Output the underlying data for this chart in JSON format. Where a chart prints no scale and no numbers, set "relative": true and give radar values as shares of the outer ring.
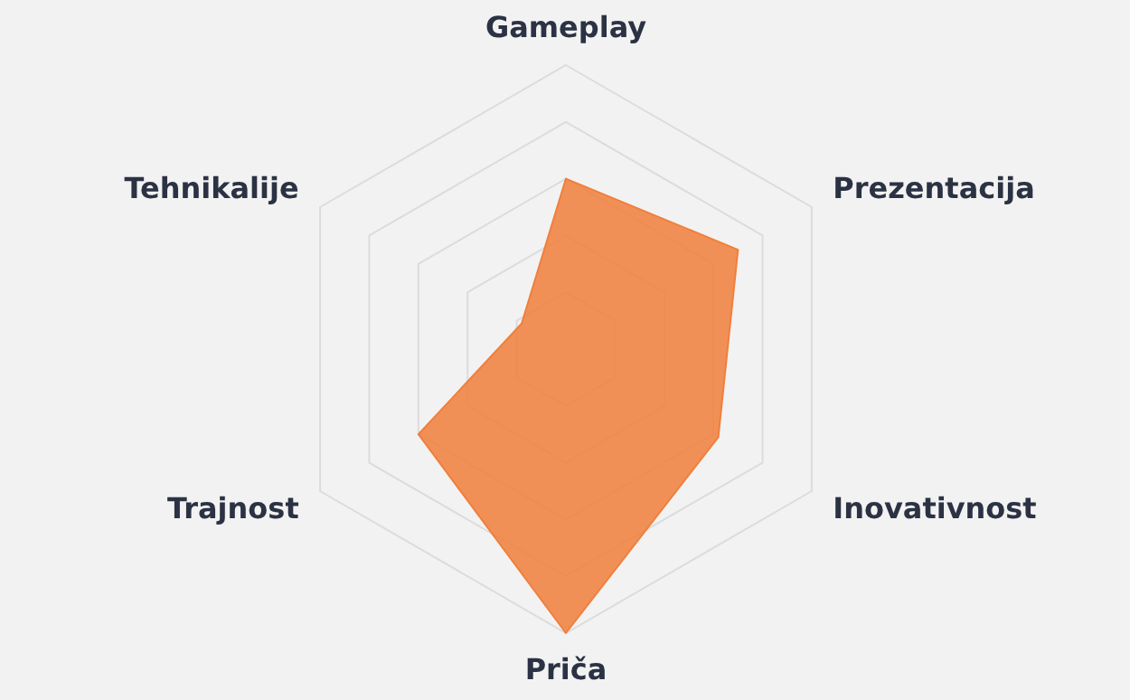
{
  "chart_data": {
    "type": "radar",
    "relative": true,
    "grid": true,
    "categories": [
      "Gameplay",
      "Prezentacija",
      "Inovativnost",
      "Priča",
      "Trajnost",
      "Tehnikalije"
    ],
    "series": [
      {
        "color": "#f07f3c",
        "values": [
          0.6,
          0.7,
          0.62,
          1.0,
          0.6,
          0.18
        ]
      }
    ]
  }
}
